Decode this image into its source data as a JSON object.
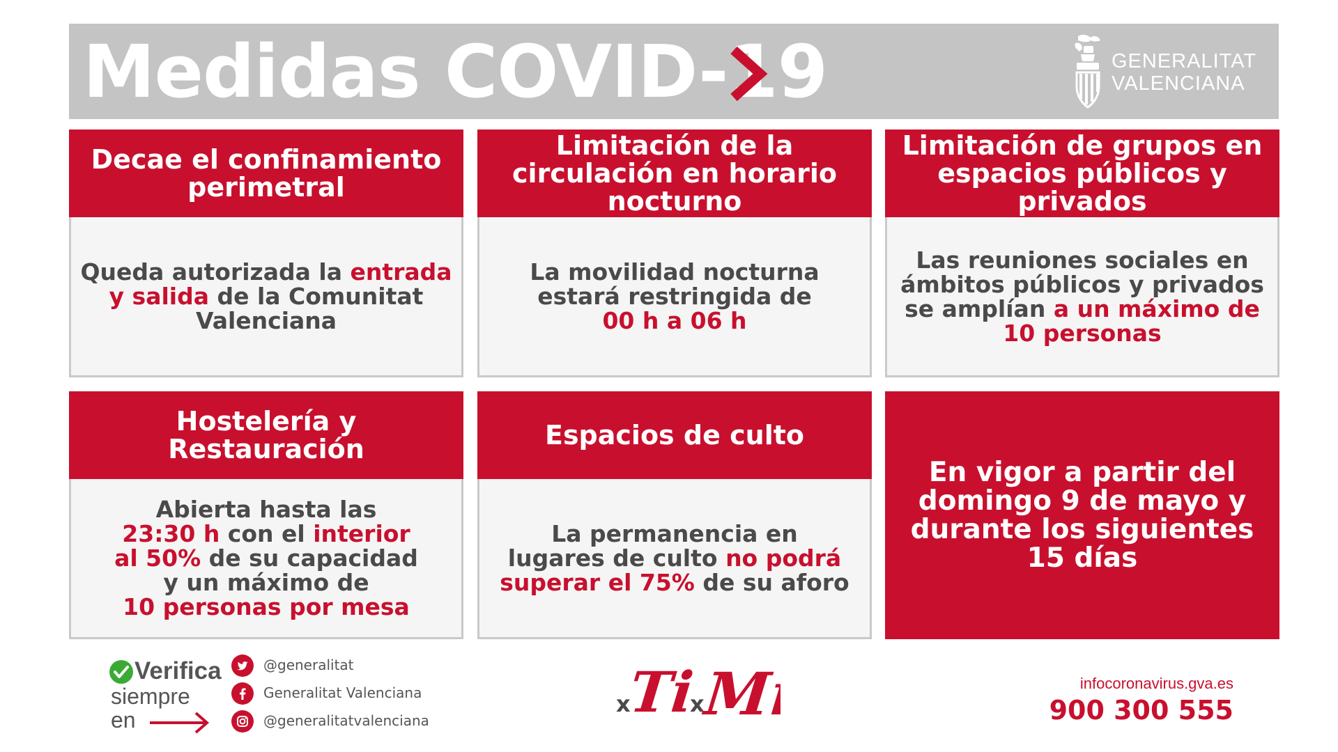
{
  "header": {
    "title": "Medidas COVID-19",
    "chevron_icon": "chevron-right-icon",
    "logo": {
      "line1": "GENERALITAT",
      "line2": "VALENCIANA",
      "emblem_icon": "gv-emblem-icon"
    }
  },
  "cards": [
    {
      "title": "Decae el confinamiento perimetral",
      "body": [
        [
          {
            "t": "Queda autorizada la "
          },
          {
            "t": "entrada",
            "hl": true
          }
        ],
        [
          {
            "t": "y salida",
            "hl": true
          },
          {
            "t": " de la Comunitat"
          }
        ],
        [
          {
            "t": "Valenciana"
          }
        ]
      ]
    },
    {
      "title": "Limitación de la circulación en horario nocturno",
      "body": [
        [
          {
            "t": "La movilidad nocturna"
          }
        ],
        [
          {
            "t": "estará restringida de"
          }
        ],
        [
          {
            "t": "00 h a 06 h",
            "hl": true
          }
        ]
      ]
    },
    {
      "title": "Limitación de grupos en espacios públicos y privados",
      "body": [
        [
          {
            "t": "Las reuniones sociales en"
          }
        ],
        [
          {
            "t": "ámbitos públicos y privados"
          }
        ],
        [
          {
            "t": "se amplían "
          },
          {
            "t": "a un máximo de",
            "hl": true
          }
        ],
        [
          {
            "t": "10 personas",
            "hl": true
          }
        ]
      ]
    },
    {
      "title": "Hostelería y Restauración",
      "body": [
        [
          {
            "t": "Abierta hasta las"
          }
        ],
        [
          {
            "t": "23:30 h",
            "hl": true
          },
          {
            "t": " con el "
          },
          {
            "t": "interior",
            "hl": true
          }
        ],
        [
          {
            "t": "al 50%",
            "hl": true
          },
          {
            "t": " de su capacidad"
          }
        ],
        [
          {
            "t": "y un máximo de"
          }
        ],
        [
          {
            "t": "10 personas por mesa",
            "hl": true
          }
        ]
      ]
    },
    {
      "title": "Espacios de culto",
      "body": [
        [
          {
            "t": "La permanencia en"
          }
        ],
        [
          {
            "t": "lugares de culto "
          },
          {
            "t": "no podrá",
            "hl": true
          }
        ],
        [
          {
            "t": "superar el 75%",
            "hl": true
          },
          {
            "t": " de su aforo"
          }
        ]
      ]
    }
  ],
  "effective_notice": {
    "lines": [
      "En vigor a partir del",
      "domingo 9 de mayo y",
      "durante los siguientes",
      "15 días"
    ]
  },
  "footer": {
    "verify": {
      "title": "Verifica",
      "line2": "siempre",
      "line3": "en",
      "check_icon": "check-circle-icon",
      "arrow_icon": "arrow-right-icon"
    },
    "social": [
      {
        "icon": "twitter-icon",
        "label": "@generalitat"
      },
      {
        "icon": "facebook-icon",
        "label": "Generalitat Valenciana"
      },
      {
        "icon": "instagram-icon",
        "label": "@generalitatvalenciana"
      }
    ],
    "slogan": {
      "x1": "x",
      "ti": "Ti",
      "x2": "x",
      "mi": "Mí"
    },
    "contact": {
      "web": "infocoronavirus.gva.es",
      "phone": "900 300 555"
    }
  },
  "colors": {
    "accent": "#c8102e",
    "header_bg": "#c4c4c4",
    "card_bg": "#f5f5f5",
    "text": "#4a4a4a"
  }
}
